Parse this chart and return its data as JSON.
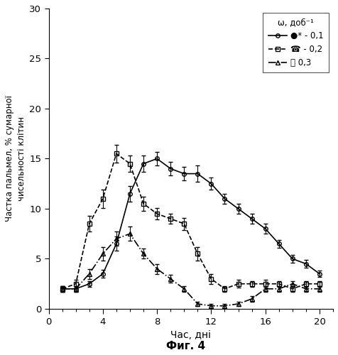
{
  "title": "",
  "xlabel": "Час, дні",
  "ylabel": "Частка пальмел, % сумарної\nчисельності клітин",
  "fig_label": "Фиг. 4",
  "xlim": [
    0,
    21
  ],
  "ylim": [
    0,
    30
  ],
  "xticks": [
    0,
    4,
    8,
    12,
    16,
    20
  ],
  "yticks": [
    0,
    5,
    10,
    15,
    20,
    25,
    30
  ],
  "legend_title": "ω, доб⁻¹",
  "background_color": "#ffffff",
  "series": [
    {
      "label": "● - 0,1",
      "linestyle": "solid",
      "marker": "o",
      "color": "#000000",
      "linewidth": 1.2,
      "markersize": 4,
      "fillstyle": "none",
      "x": [
        1,
        2,
        3,
        4,
        5,
        6,
        7,
        8,
        9,
        10,
        11,
        12,
        13,
        14,
        15,
        16,
        17,
        18,
        19,
        20
      ],
      "y": [
        2.0,
        2.0,
        2.5,
        3.5,
        6.5,
        11.5,
        14.5,
        15.0,
        14.0,
        13.5,
        13.5,
        12.5,
        11.0,
        10.0,
        9.0,
        8.0,
        6.5,
        5.0,
        4.5,
        3.5
      ],
      "yerr": [
        0.3,
        0.3,
        0.3,
        0.4,
        0.7,
        0.8,
        0.8,
        0.7,
        0.7,
        0.7,
        0.8,
        0.6,
        0.5,
        0.5,
        0.5,
        0.5,
        0.4,
        0.4,
        0.4,
        0.3
      ]
    },
    {
      "label": "□ - 0,2",
      "linestyle": "dashed",
      "marker": "s",
      "color": "#000000",
      "linewidth": 1.2,
      "markersize": 4,
      "fillstyle": "none",
      "x": [
        1,
        2,
        3,
        4,
        5,
        6,
        7,
        8,
        9,
        10,
        11,
        12,
        13,
        14,
        15,
        16,
        17,
        18,
        19,
        20
      ],
      "y": [
        2.0,
        2.5,
        8.5,
        11.0,
        15.5,
        14.5,
        10.5,
        9.5,
        9.0,
        8.5,
        5.5,
        3.0,
        2.0,
        2.5,
        2.5,
        2.5,
        2.5,
        2.0,
        2.5,
        2.5
      ],
      "yerr": [
        0.3,
        0.4,
        0.8,
        0.9,
        0.9,
        0.8,
        0.7,
        0.6,
        0.5,
        0.6,
        0.7,
        0.5,
        0.3,
        0.4,
        0.3,
        0.4,
        0.3,
        0.3,
        0.3,
        0.3
      ]
    },
    {
      "label": "△  0,3",
      "linestyle": "dashdot",
      "marker": "^",
      "color": "#000000",
      "linewidth": 1.2,
      "markersize": 4,
      "fillstyle": "none",
      "x": [
        1,
        2,
        3,
        4,
        5,
        6,
        7,
        8,
        9,
        10,
        11,
        12,
        13,
        14,
        15,
        16,
        17,
        18,
        19,
        20
      ],
      "y": [
        2.0,
        2.0,
        3.5,
        5.5,
        7.0,
        7.5,
        5.5,
        4.0,
        3.0,
        2.0,
        0.5,
        0.3,
        0.3,
        0.5,
        1.0,
        2.0,
        2.0,
        2.5,
        2.0,
        2.0
      ],
      "yerr": [
        0.3,
        0.3,
        0.5,
        0.7,
        0.7,
        0.7,
        0.5,
        0.5,
        0.4,
        0.3,
        0.2,
        0.2,
        0.2,
        0.2,
        0.3,
        0.3,
        0.3,
        0.3,
        0.3,
        0.3
      ]
    }
  ]
}
